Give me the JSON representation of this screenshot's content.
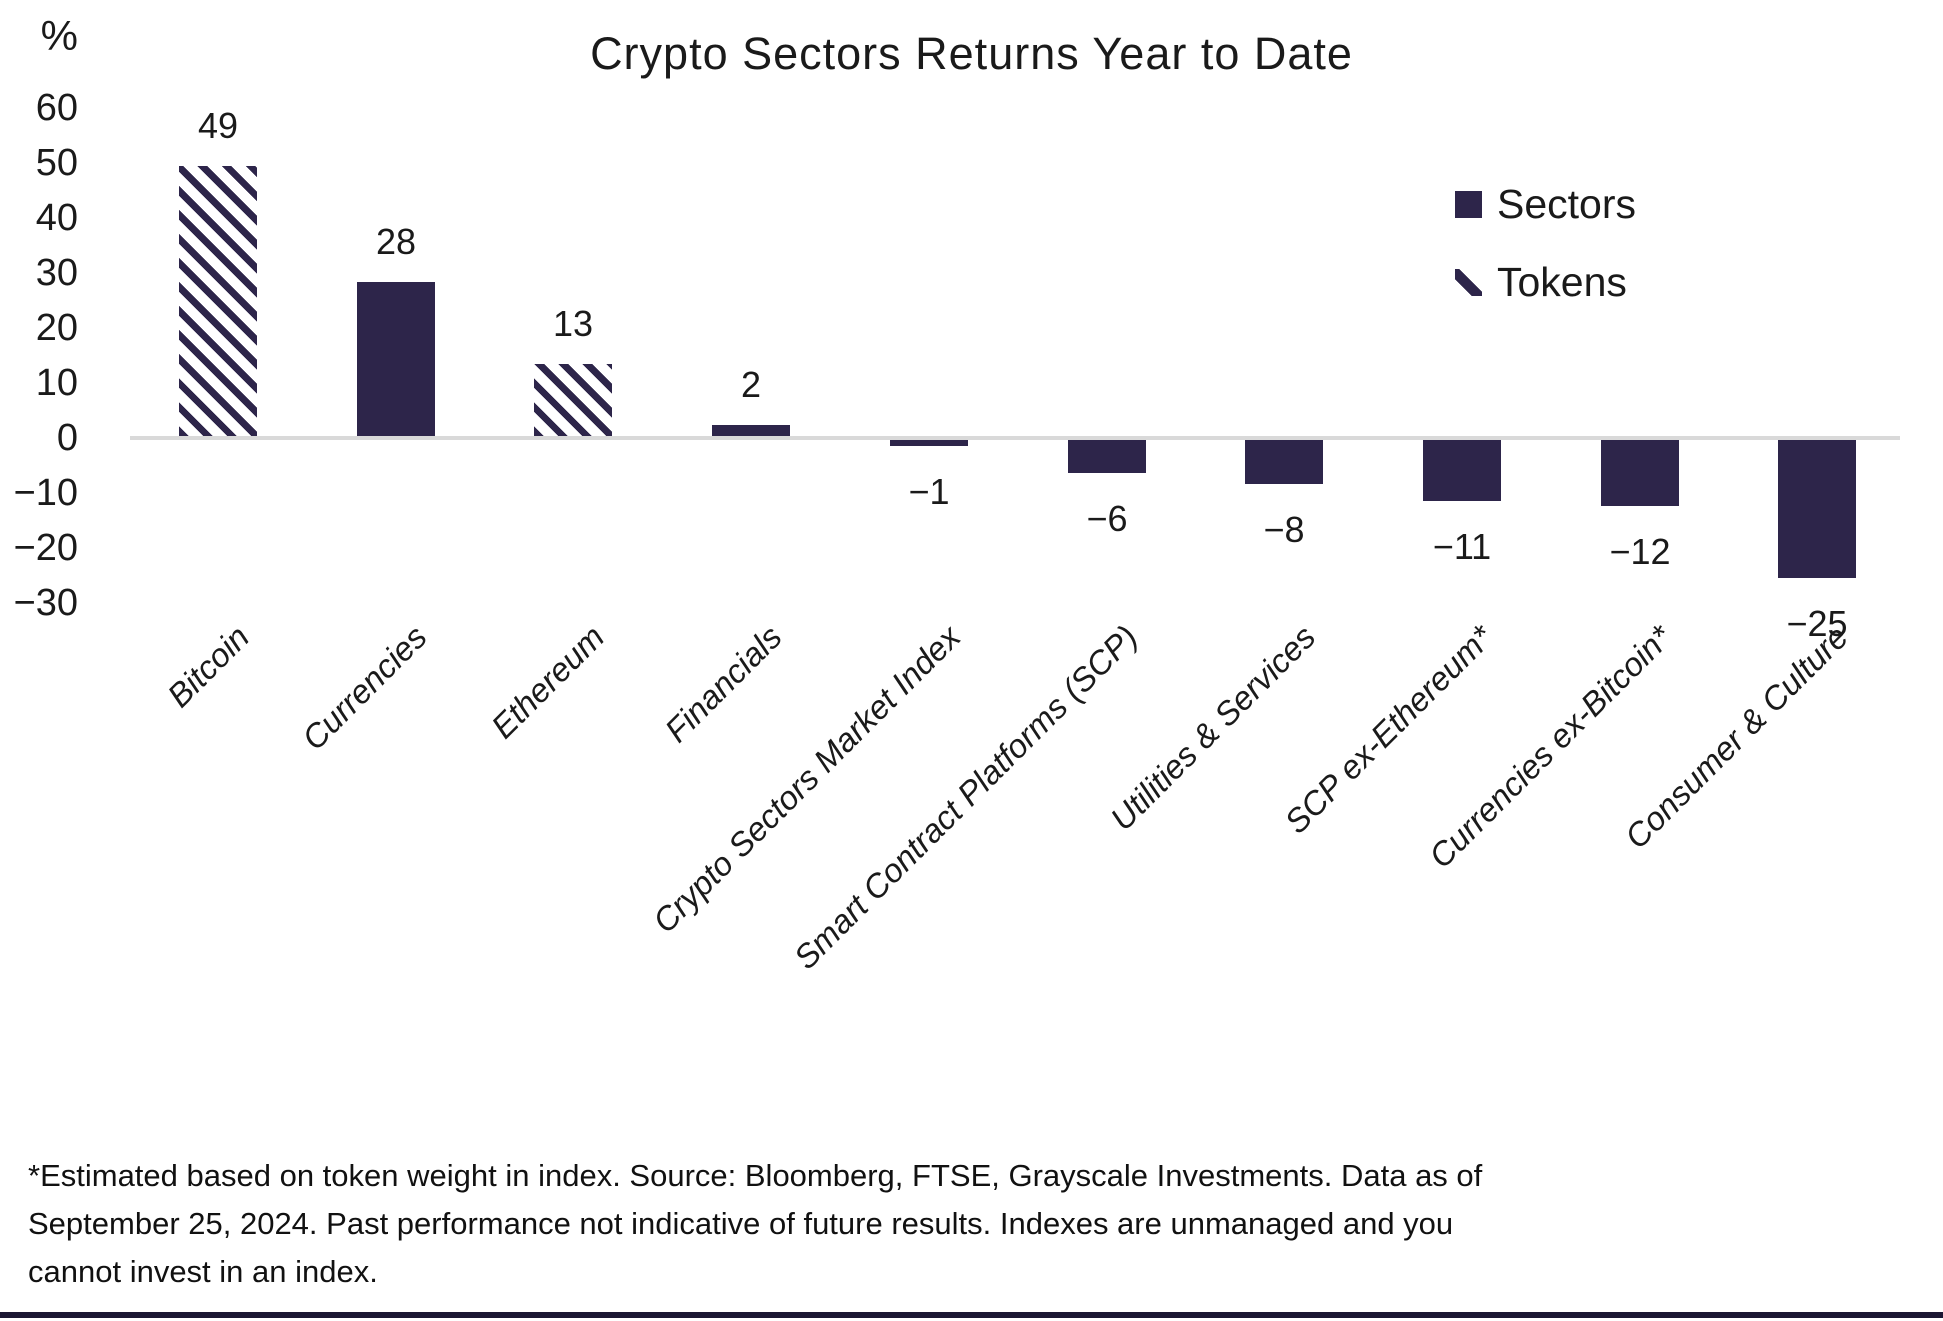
{
  "colors": {
    "accent": "#2d254a",
    "zero_line": "#d9d9d9",
    "text": "#1a1a1a",
    "bottom_rule": "#1b1733"
  },
  "chart_data": {
    "type": "bar",
    "title": "Crypto Sectors Returns Year to Date",
    "xlabel": "",
    "ylabel": "%",
    "ylim": [
      -30,
      60
    ],
    "yticks": [
      60,
      50,
      40,
      30,
      20,
      10,
      0,
      -10,
      -20,
      -30
    ],
    "grid": false,
    "legend_position": "upper right",
    "categories": [
      "Bitcoin",
      "Currencies",
      "Ethereum",
      "Financials",
      "Crypto Sectors Market Index",
      "Smart Contract Platforms (SCP)",
      "Utilities & Services",
      "SCP ex-Ethereum*",
      "Currencies ex-Bitcoin*",
      "Consumer & Culture"
    ],
    "values": [
      49,
      28,
      13,
      2,
      -1,
      -6,
      -8,
      -11,
      -12,
      -25
    ],
    "bar_series": [
      "Tokens",
      "Sectors",
      "Tokens",
      "Sectors",
      "Sectors",
      "Sectors",
      "Sectors",
      "Sectors",
      "Sectors",
      "Sectors"
    ]
  },
  "legend": {
    "items": [
      {
        "label": "Sectors",
        "style": "solid"
      },
      {
        "label": "Tokens",
        "style": "hatched"
      }
    ]
  },
  "footer": {
    "lines": [
      "*Estimated based on token weight in index. Source: Bloomberg, FTSE, Grayscale Investments. Data as of",
      "September 25, 2024. Past performance not indicative of future results. Indexes are unmanaged and you",
      "cannot invest in an index."
    ]
  }
}
